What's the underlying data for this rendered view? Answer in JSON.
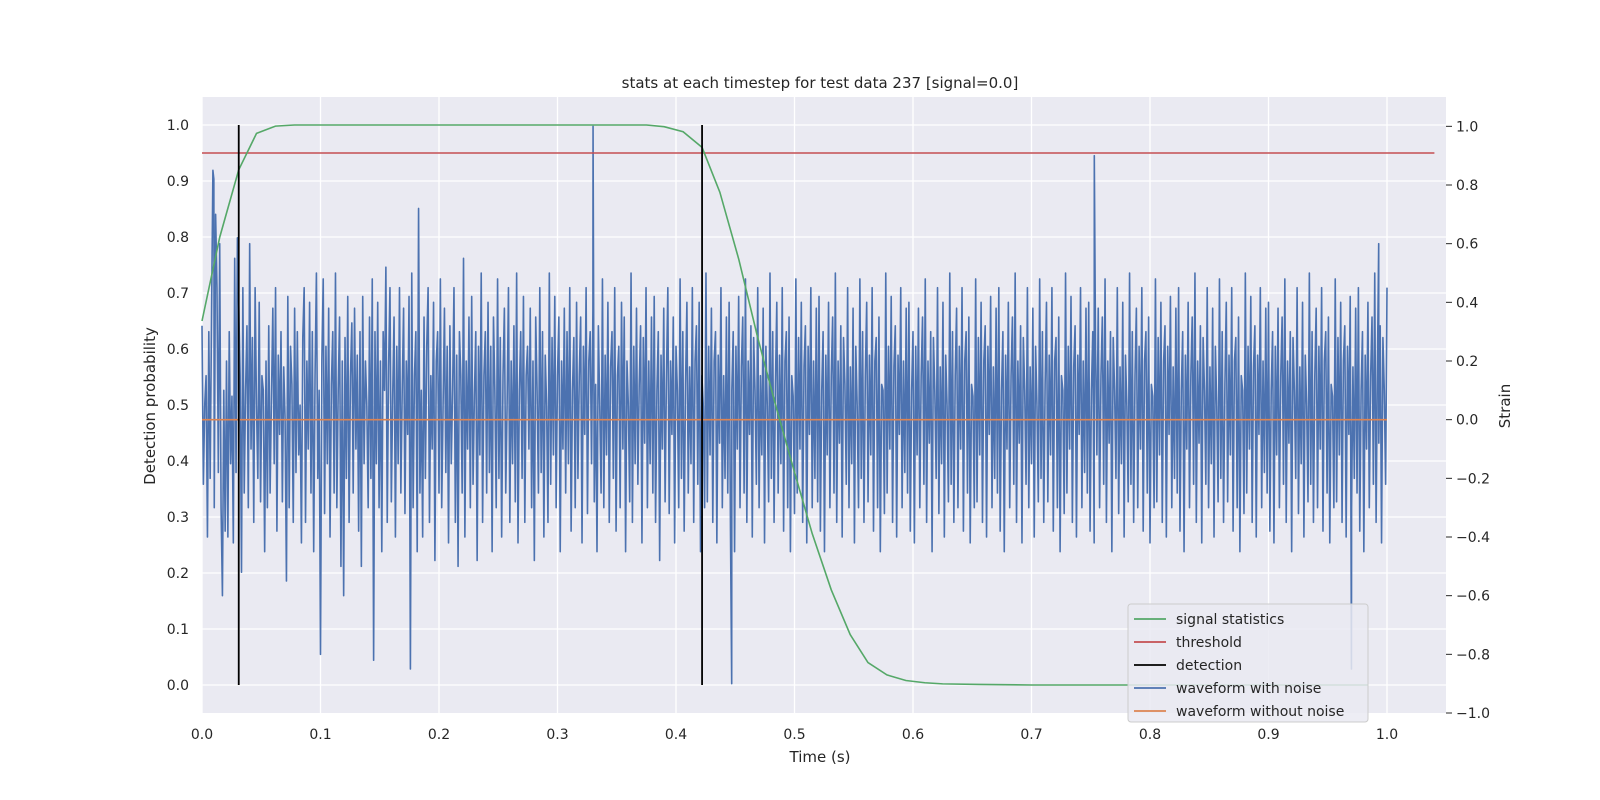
{
  "chart_data": {
    "type": "line",
    "title": "stats at each timestep for test data 237 [signal=0.0]",
    "xlabel": "Time (s)",
    "ylabel_left": "Detection probability",
    "ylabel_right": "Strain",
    "xlim": [
      0.0,
      1.05
    ],
    "ylim_left": [
      -0.05,
      1.05
    ],
    "ylim_right": [
      -1.0,
      1.1
    ],
    "x_ticks": [
      0.0,
      0.1,
      0.2,
      0.3,
      0.4,
      0.5,
      0.6,
      0.7,
      0.8,
      0.9,
      1.0
    ],
    "x_tick_labels": [
      "0.0",
      "0.1",
      "0.2",
      "0.3",
      "0.4",
      "0.5",
      "0.6",
      "0.7",
      "0.8",
      "0.9",
      "1.0"
    ],
    "y_left_ticks": [
      0.0,
      0.1,
      0.2,
      0.3,
      0.4,
      0.5,
      0.6,
      0.7,
      0.8,
      0.9,
      1.0
    ],
    "y_left_tick_labels": [
      "0.0",
      "0.1",
      "0.2",
      "0.3",
      "0.4",
      "0.5",
      "0.6",
      "0.7",
      "0.8",
      "0.9",
      "1.0"
    ],
    "y_right_ticks": [
      -1.0,
      -0.8,
      -0.6,
      -0.4,
      -0.2,
      0.0,
      0.2,
      0.4,
      0.6,
      0.8,
      1.0
    ],
    "y_right_tick_labels": [
      "−1.0",
      "−0.8",
      "−0.6",
      "−0.4",
      "−0.2",
      "0.0",
      "0.2",
      "0.4",
      "0.6",
      "0.8",
      "1.0"
    ],
    "grid": true,
    "background": "#eaeaf2",
    "legend_position": "lower-right",
    "legend": [
      {
        "label": "signal statistics",
        "color": "#55a868"
      },
      {
        "label": "threshold",
        "color": "#c44e52"
      },
      {
        "label": "detection",
        "color": "#000000"
      },
      {
        "label": "waveform with noise",
        "color": "#4c72b0"
      },
      {
        "label": "waveform without noise",
        "color": "#dd8452"
      }
    ],
    "series": [
      {
        "name": "signal statistics",
        "axis": "left",
        "color": "#55a868",
        "x": [
          0.0,
          0.015,
          0.031,
          0.046,
          0.062,
          0.078,
          0.2,
          0.3,
          0.375,
          0.39,
          0.406,
          0.422,
          0.437,
          0.453,
          0.469,
          0.484,
          0.5,
          0.515,
          0.531,
          0.547,
          0.562,
          0.578,
          0.594,
          0.61,
          0.625,
          0.656,
          0.7,
          0.8,
          0.9,
          0.984
        ],
        "values": [
          0.65,
          0.8,
          0.92,
          0.985,
          0.998,
          1.0,
          1.0,
          1.0,
          1.0,
          0.997,
          0.988,
          0.96,
          0.88,
          0.76,
          0.62,
          0.5,
          0.38,
          0.27,
          0.17,
          0.09,
          0.04,
          0.018,
          0.008,
          0.004,
          0.002,
          0.001,
          0.0,
          0.0,
          0.0,
          0.0
        ]
      },
      {
        "name": "threshold",
        "axis": "left",
        "color": "#c44e52",
        "x": [
          0.0,
          1.04
        ],
        "values": [
          0.95,
          0.95
        ]
      },
      {
        "name": "waveform without noise",
        "axis": "right",
        "color": "#dd8452",
        "x": [
          0.0,
          1.0
        ],
        "values": [
          0.0,
          0.0
        ]
      }
    ],
    "detections": {
      "name": "detection",
      "axis": "left",
      "color": "#000000",
      "x": [
        0.031,
        0.422
      ],
      "y_range": [
        0.0,
        1.0
      ]
    },
    "noisy_waveform": {
      "name": "waveform with noise",
      "axis": "right",
      "color": "#4c72b0",
      "x_start": 0.0,
      "x_end": 1.0,
      "values": [
        0.32,
        -0.22,
        0.05,
        0.15,
        -0.4,
        0.3,
        -0.2,
        0.35,
        0.85,
        -0.3,
        0.7,
        0.45,
        -0.18,
        0.6,
        -0.3,
        -0.6,
        0.1,
        -0.38,
        0.2,
        -0.4,
        0.3,
        -0.15,
        0.08,
        -0.42,
        0.55,
        -0.18,
        0.62,
        0.38,
        0.15,
        -0.52,
        0.45,
        -0.25,
        0.1,
        0.32,
        -0.3,
        0.6,
        -0.1,
        0.28,
        -0.35,
        0.45,
        0.05,
        -0.2,
        0.4,
        -0.28,
        0.15,
        0.1,
        -0.45,
        0.2,
        -0.3,
        0.32,
        -0.25,
        0.08,
        0.38,
        -0.15,
        0.45,
        -0.38,
        0.22,
        -0.05,
        0.3,
        -0.28,
        0.18,
        0.0,
        -0.55,
        0.42,
        -0.3,
        0.25,
        0.12,
        -0.35,
        0.38,
        -0.18,
        0.3,
        -0.12,
        0.05,
        -0.42,
        0.28,
        0.45,
        -0.35,
        0.2,
        -0.1,
        0.4,
        -0.25,
        0.3,
        -0.45,
        0.15,
        0.5,
        -0.2,
        0.1,
        -0.8,
        0.2,
        0.48,
        -0.32,
        0.25,
        -0.15,
        0.38,
        -0.4,
        0.12,
        0.3,
        -0.25,
        0.5,
        -0.3,
        0.1,
        0.35,
        -0.5,
        0.2,
        -0.6,
        0.28,
        -0.2,
        0.42,
        -0.35,
        0.15,
        0.33,
        -0.25,
        0.38,
        -0.1,
        0.22,
        -0.38,
        0.3,
        -0.5,
        0.42,
        -0.15,
        0.2,
        0.05,
        -0.3,
        0.35,
        -0.2,
        0.48,
        -0.82,
        0.3,
        -0.15,
        0.4,
        -0.3,
        0.2,
        -0.45,
        0.3,
        0.1,
        0.52,
        -0.35,
        0.18,
        0.45,
        -0.28,
        0.08,
        0.35,
        -0.4,
        0.25,
        -0.15,
        0.45,
        -0.25,
        0.1,
        0.38,
        -0.32,
        0.2,
        -0.05,
        0.42,
        -0.85,
        0.5,
        -0.3,
        0.15,
        0.3,
        -0.45,
        0.72,
        -0.25,
        0.1,
        -0.4,
        0.35,
        -0.2,
        0.25,
        0.45,
        -0.35,
        0.15,
        -0.1,
        0.4,
        -0.48,
        0.2,
        0.3,
        -0.25,
        0.48,
        -0.3,
        0.05,
        0.38,
        -0.18,
        0.25,
        -0.42,
        0.32,
        -0.15,
        0.1,
        0.45,
        -0.35,
        0.22,
        -0.5,
        0.3,
        0.15,
        -0.25,
        0.55,
        -0.4,
        0.2,
        -0.1,
        0.35,
        -0.3,
        0.42,
        -0.22,
        0.08,
        0.3,
        -0.48,
        0.25,
        -0.12,
        0.5,
        -0.35,
        0.15,
        0.3,
        -0.25,
        0.4,
        -0.18,
        0.25,
        -0.45,
        0.35,
        0.1,
        -0.3,
        0.48,
        -0.2,
        0.28,
        -0.4,
        0.15,
        0.38,
        -0.25,
        0.05,
        0.45,
        -0.35,
        0.2,
        -0.15,
        0.32,
        -0.28,
        0.5,
        -0.42,
        0.1,
        0.3,
        -0.2,
        0.42,
        -0.35,
        0.15,
        0.25,
        -0.1,
        0.38,
        -0.3,
        0.2,
        -0.48,
        0.35,
        0.1,
        -0.25,
        0.45,
        -0.18,
        0.3,
        -0.4,
        0.22,
        0.05,
        -0.35,
        0.5,
        -0.22,
        0.28,
        -0.12,
        0.42,
        -0.3,
        0.15,
        0.35,
        -0.45,
        0.2,
        -0.1,
        0.38,
        -0.25,
        0.3,
        -0.15,
        0.45,
        -0.38,
        0.1,
        0.28,
        -0.3,
        0.4,
        -0.2,
        0.15,
        0.35,
        -0.42,
        0.25,
        -0.05,
        0.45,
        -0.32,
        0.2,
        0.3,
        -0.15,
        0.38,
        -0.28,
        0.12,
        -0.45,
        0.32,
        0.05,
        -0.25,
        0.48,
        -0.3,
        0.22,
        -0.12,
        0.4,
        -0.35,
        0.18,
        0.3,
        -0.2,
        0.45,
        -0.38,
        0.15,
        0.25,
        -0.3,
        0.4,
        -0.1,
        0.35,
        -0.45,
        0.2,
        0.05,
        -0.28,
        0.5,
        -0.35,
        0.25,
        -0.15,
        0.38,
        -0.22,
        0.12,
        0.32,
        -0.42,
        0.28,
        -0.08,
        0.45,
        -0.3,
        0.2,
        -0.15,
        0.35,
        -0.25,
        0.42,
        -0.35,
        0.1,
        0.3,
        -0.48,
        0.22,
        -0.1,
        0.38,
        -0.28,
        0.15,
        0.45,
        -0.32,
        0.2,
        -0.05,
        0.35,
        -0.42,
        0.25,
        0.1,
        -0.3,
        0.48,
        -0.2,
        0.3,
        -0.38,
        0.12,
        0.4,
        -0.25,
        0.18,
        -0.15,
        0.45,
        -0.35,
        0.2,
        0.32,
        -0.22,
        0.4,
        -0.45,
        0.15,
        0.05,
        -0.3,
        0.5,
        -0.28,
        0.25,
        -0.12,
        0.38,
        -0.35,
        0.2,
        0.3,
        -0.42,
        0.22,
        -0.08,
        0.45,
        -0.3,
        0.15,
        -0.2,
        0.35,
        -0.25,
        0.4,
        -0.38,
        0.1,
        0.3,
        -0.45,
        0.25,
        -0.1,
        0.42,
        -0.3,
        0.18,
        0.35,
        -0.25,
        0.48,
        -0.35,
        0.2,
        -0.05,
        0.32,
        -0.4,
        0.28,
        0.1,
        -0.22,
        0.45,
        -0.3,
        0.15,
        -0.12,
        0.38,
        -0.42,
        0.25,
        0.05,
        -0.28,
        0.5,
        -0.2,
        0.3,
        -0.35,
        0.12,
        0.4,
        -0.25,
        0.22,
        -0.15,
        0.45,
        -0.38,
        0.2,
        0.3,
        -0.3,
        0.35,
        -0.45,
        0.15,
        0.08,
        -0.32,
        0.48,
        -0.25,
        0.28,
        -0.1,
        0.4,
        -0.35,
        0.18,
        0.32,
        -0.42,
        0.25,
        -0.05,
        0.45,
        -0.3,
        0.2,
        -0.2,
        0.38,
        -0.28,
        0.42,
        -0.38,
        0.1,
        0.3,
        -0.45,
        0.22,
        -0.12,
        0.4,
        -0.3,
        0.15,
        0.35,
        -0.25,
        0.5,
        -0.35,
        0.2,
        -0.08,
        0.32,
        -0.4,
        0.28,
        0.12,
        -0.22,
        0.45,
        -0.3,
        0.18,
        -0.15,
        0.38,
        -0.42,
        0.25,
        0.05,
        -0.3,
        0.48,
        -0.2,
        0.3,
        -0.35,
        0.15,
        0.4,
        -0.28,
        0.22,
        -0.12,
        0.45,
        -0.38,
        0.2,
        0.28,
        -0.3,
        0.35,
        -0.45,
        0.12,
        0.1,
        -0.32,
        0.5,
        -0.25,
        0.25,
        -0.1,
        0.42,
        -0.35,
        0.18,
        0.32,
        -0.4,
        0.22,
        -0.05,
        0.45,
        -0.3,
        0.2,
        -0.18,
        0.38,
        -0.25,
        0.4,
        -0.38,
        0.1,
        0.3,
        -0.42,
        0.25,
        -0.12,
        0.38,
        -0.3,
        0.15,
        0.35,
        -0.22,
        0.48,
        -0.35,
        0.2,
        -0.08,
        0.3,
        -0.45,
        0.28,
        0.1,
        -0.2,
        0.45,
        -0.32,
        0.18,
        -0.15,
        0.4,
        -0.4,
        0.22,
        0.05,
        -0.28,
        0.5,
        -0.22,
        0.3,
        -0.35,
        0.15,
        0.38,
        -0.3,
        0.25,
        -0.1,
        0.45,
        -0.38,
        0.2,
        0.3,
        -0.25,
        0.35,
        -0.42,
        0.12,
        0.08,
        -0.3,
        0.48,
        -0.28,
        0.28,
        -0.12,
        0.4,
        -0.35,
        0.2,
        0.32,
        -0.4,
        0.25,
        -0.05,
        0.42,
        -0.3,
        0.18,
        -0.2,
        0.38,
        -0.25,
        0.45,
        -0.38,
        0.1,
        0.3,
        -0.45,
        0.22,
        -0.1,
        0.4,
        -0.3,
        0.15,
        0.35,
        -0.22,
        0.5,
        -0.35,
        0.2,
        -0.08,
        0.32,
        -0.42,
        0.28,
        0.1,
        -0.22,
        0.45,
        -0.3,
        0.18,
        -0.15,
        0.38,
        -0.4,
        0.25,
        0.05,
        -0.28,
        0.48,
        -0.2,
        0.3,
        -0.35,
        0.12,
        0.4,
        -0.28,
        0.22,
        -0.12,
        0.45,
        -0.38,
        0.2,
        0.28,
        -0.3,
        0.35,
        -0.45,
        0.15,
        0.1,
        -0.32,
        0.5,
        -0.25,
        0.25,
        -0.1,
        0.42,
        -0.35,
        0.18,
        0.32,
        -0.4,
        0.22,
        -0.05,
        0.45,
        -0.3,
        0.2,
        -0.18,
        0.38,
        -0.25,
        0.4,
        -0.38,
        0.1,
        0.3,
        -0.42,
        0.25,
        -0.12,
        0.38,
        -0.3,
        0.15,
        0.35,
        -0.22,
        0.48,
        -0.35,
        0.2,
        -0.08,
        0.3,
        -0.45,
        0.28,
        0.1,
        -0.2,
        0.45,
        -0.32,
        0.18,
        -0.15,
        0.4,
        -0.4,
        0.22,
        0.05,
        -0.28,
        0.5,
        -0.22,
        0.3,
        -0.35,
        0.15,
        0.38,
        -0.3,
        0.25,
        -0.1,
        0.45,
        -0.38,
        0.2,
        0.3,
        -0.25,
        0.35,
        -0.42,
        0.12,
        0.08,
        -0.3,
        0.48,
        -0.28,
        0.28,
        -0.12,
        0.4,
        -0.35,
        0.2,
        0.32,
        -0.4,
        0.25,
        -0.05,
        0.42,
        -0.3,
        0.18,
        -0.2,
        0.38,
        -0.25,
        0.45,
        -0.38,
        0.1,
        0.3,
        -0.45,
        0.22,
        -0.1,
        0.4,
        -0.3,
        0.15,
        0.35,
        -0.22,
        0.5,
        -0.35,
        0.2,
        -0.08,
        0.32,
        -0.42,
        0.28,
        0.1,
        -0.22,
        0.45,
        -0.3,
        0.18,
        -0.15,
        0.38,
        -0.4,
        0.25,
        0.05,
        -0.28,
        0.48,
        -0.2,
        0.3,
        -0.35,
        0.12,
        0.4,
        -0.28,
        0.22,
        -0.12,
        0.45,
        -0.38,
        0.2,
        0.28,
        -0.3,
        0.35,
        -0.45,
        0.15,
        0.1,
        -0.32,
        0.5,
        -0.25,
        0.25,
        -0.1,
        0.42,
        -0.35,
        0.18,
        0.32,
        -0.4,
        0.22,
        -0.05,
        0.45,
        -0.3,
        0.2,
        -0.18,
        0.38,
        -0.25,
        0.4,
        -0.38,
        0.1,
        0.3,
        -0.42,
        0.25,
        -0.12,
        0.38,
        -0.3,
        0.15,
        0.35,
        -0.22,
        0.48,
        -0.35,
        0.2,
        -0.08,
        0.3,
        -0.45,
        0.28,
        0.1,
        -0.2,
        0.45,
        -0.32,
        0.18,
        -0.15,
        0.4,
        -0.4,
        0.22,
        0.05,
        -0.28,
        0.5,
        -0.22,
        0.3,
        -0.35,
        0.15,
        0.38,
        -0.3,
        0.25,
        -0.1,
        0.45,
        -0.38,
        0.2,
        0.3,
        -0.25,
        0.35,
        -0.42,
        0.12,
        0.08,
        -0.3,
        0.48,
        -0.28,
        0.28,
        -0.12,
        0.4,
        -0.35,
        0.2,
        0.32,
        -0.4,
        0.25,
        -0.05,
        0.42,
        -0.3,
        0.18,
        -0.2,
        0.38,
        -0.25,
        0.45,
        -0.38,
        0.1,
        0.3,
        -0.45,
        0.22,
        -0.1,
        0.4,
        -0.3,
        0.15,
        0.35,
        -0.22,
        0.5,
        -0.35,
        0.2,
        -0.08,
        0.32,
        -0.42,
        0.28,
        0.1,
        -0.22,
        0.45
      ],
      "spikes": [
        {
          "x": 0.01,
          "value": 0.82
        },
        {
          "x": 0.33,
          "value": 1.0
        },
        {
          "x": 0.447,
          "value": -0.9
        },
        {
          "x": 0.753,
          "value": 0.9
        },
        {
          "x": 0.97,
          "value": -0.85
        },
        {
          "x": 0.993,
          "value": 0.6
        }
      ]
    }
  }
}
